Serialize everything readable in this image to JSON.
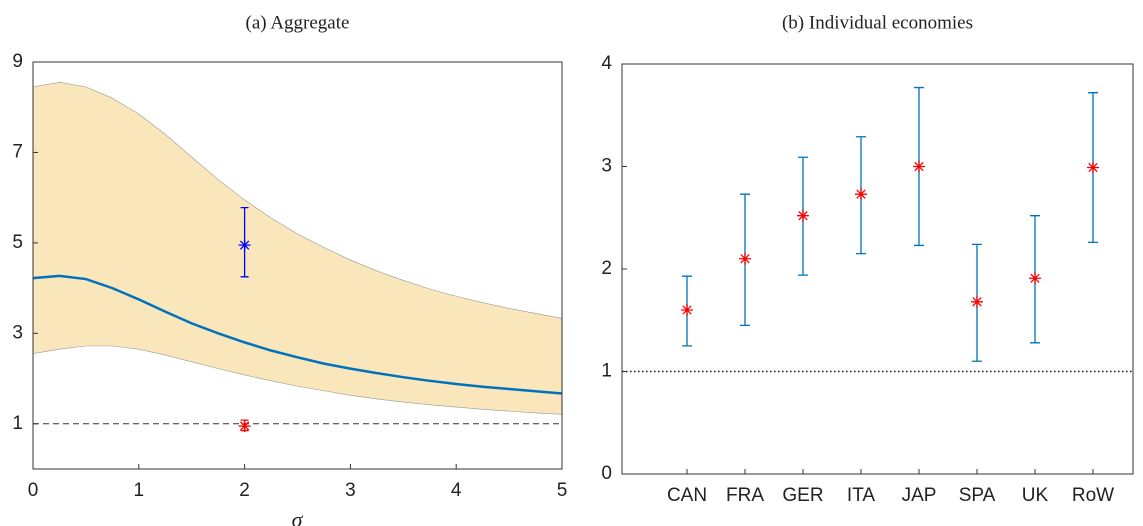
{
  "chart_data": [
    {
      "type": "line",
      "title": "(a) Aggregate",
      "xlabel": "σ",
      "x": [
        0,
        0.25,
        0.5,
        0.75,
        1,
        1.25,
        1.5,
        1.75,
        2,
        2.25,
        2.5,
        2.75,
        3,
        3.25,
        3.5,
        3.75,
        4,
        4.25,
        4.5,
        4.75,
        5
      ],
      "series": [
        {
          "color": "#0072bd",
          "values": [
            4.22,
            4.27,
            4.2,
            4.0,
            3.75,
            3.48,
            3.22,
            3.0,
            2.8,
            2.62,
            2.47,
            2.33,
            2.22,
            2.12,
            2.03,
            1.95,
            1.88,
            1.82,
            1.77,
            1.72,
            1.67
          ]
        }
      ],
      "band": {
        "color": "#f9e6bb",
        "upper": [
          8.45,
          8.55,
          8.45,
          8.2,
          7.85,
          7.4,
          6.9,
          6.4,
          5.95,
          5.55,
          5.2,
          4.9,
          4.62,
          4.38,
          4.17,
          3.98,
          3.82,
          3.68,
          3.55,
          3.44,
          3.33
        ],
        "lower": [
          2.55,
          2.65,
          2.72,
          2.72,
          2.65,
          2.52,
          2.37,
          2.22,
          2.08,
          1.95,
          1.83,
          1.73,
          1.63,
          1.55,
          1.48,
          1.42,
          1.37,
          1.32,
          1.28,
          1.24,
          1.21
        ]
      },
      "points": [
        {
          "x": 2,
          "y": 4.95,
          "lower": 4.25,
          "upper": 5.78,
          "color": "#0000ff"
        },
        {
          "x": 2,
          "y": 0.95,
          "lower": 0.85,
          "upper": 1.08,
          "color": "#ff0000"
        }
      ],
      "hline": 1,
      "xlim": [
        0,
        5
      ],
      "xticks": [
        0,
        1,
        2,
        3,
        4,
        5
      ],
      "ylim": [
        0,
        9
      ],
      "yticks": [
        1,
        3,
        5,
        7,
        9
      ]
    },
    {
      "type": "errorbar",
      "title": "(b) Individual economies",
      "categories": [
        "CAN",
        "FRA",
        "GER",
        "ITA",
        "JAP",
        "SPA",
        "UK",
        "RoW"
      ],
      "values": [
        1.6,
        2.1,
        2.52,
        2.73,
        3.0,
        1.68,
        1.91,
        2.99
      ],
      "lower": [
        1.25,
        1.45,
        1.94,
        2.15,
        2.23,
        1.1,
        1.28,
        2.26
      ],
      "upper": [
        1.93,
        2.73,
        3.09,
        3.29,
        3.77,
        2.24,
        2.52,
        3.72
      ],
      "color": "#0072bd",
      "marker_color": "#ff0000",
      "hline": 1,
      "ylim": [
        0,
        4
      ],
      "yticks": [
        0,
        1,
        2,
        3,
        4
      ]
    }
  ]
}
